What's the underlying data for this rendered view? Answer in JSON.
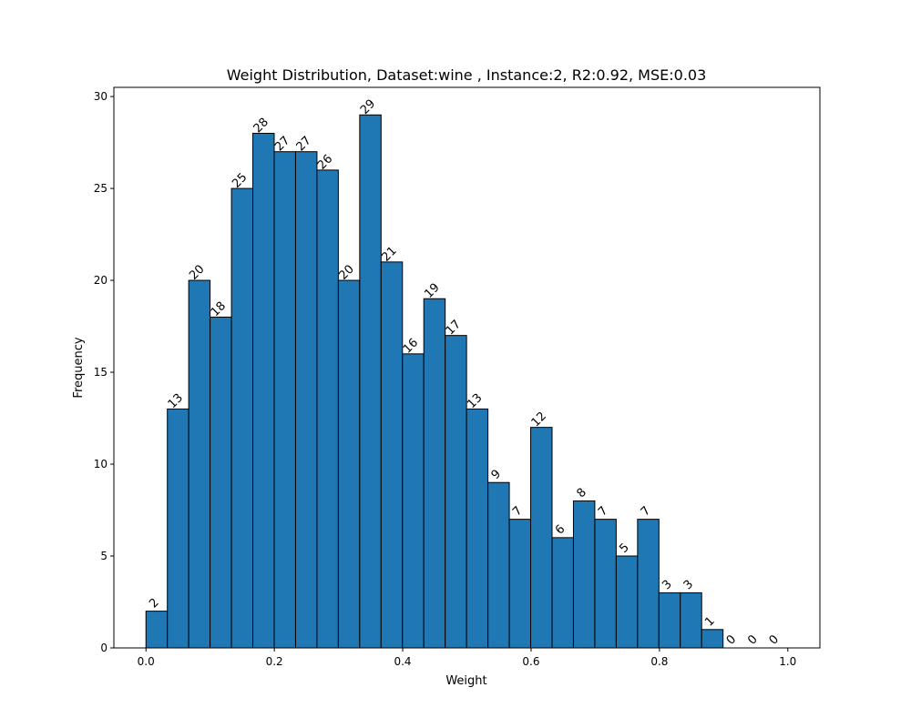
{
  "chart_data": {
    "type": "bar",
    "title": "Weight Distribution, Dataset:wine , Instance:2, R2:0.92, MSE:0.03",
    "xlabel": "Weight",
    "ylabel": "Frequency",
    "xlim": [
      -0.05,
      1.05
    ],
    "ylim": [
      0,
      30.5
    ],
    "xticks": [
      0.0,
      0.2,
      0.4,
      0.6,
      0.8,
      1.0
    ],
    "xtick_labels": [
      "0.0",
      "0.2",
      "0.4",
      "0.6",
      "0.8",
      "1.0"
    ],
    "yticks": [
      0,
      5,
      10,
      15,
      20,
      25,
      30
    ],
    "ytick_labels": [
      "0",
      "5",
      "10",
      "15",
      "20",
      "25",
      "30"
    ],
    "bin_start": 0.0,
    "bin_width": 0.0333,
    "values": [
      2,
      13,
      20,
      18,
      25,
      28,
      27,
      27,
      26,
      20,
      29,
      21,
      16,
      19,
      17,
      13,
      9,
      7,
      12,
      6,
      8,
      7,
      5,
      7,
      3,
      3,
      1,
      0,
      0,
      0
    ],
    "bar_labels": [
      "2",
      "13",
      "20",
      "18",
      "25",
      "28",
      "27",
      "27",
      "26",
      "20",
      "29",
      "21",
      "16",
      "19",
      "17",
      "13",
      "9",
      "7",
      "12",
      "6",
      "8",
      "7",
      "5",
      "7",
      "3",
      "3",
      "1",
      "0",
      "0",
      "0"
    ],
    "bar_color": "#1f77b4",
    "edge_color": "#000000",
    "grid": false,
    "legend": null
  }
}
